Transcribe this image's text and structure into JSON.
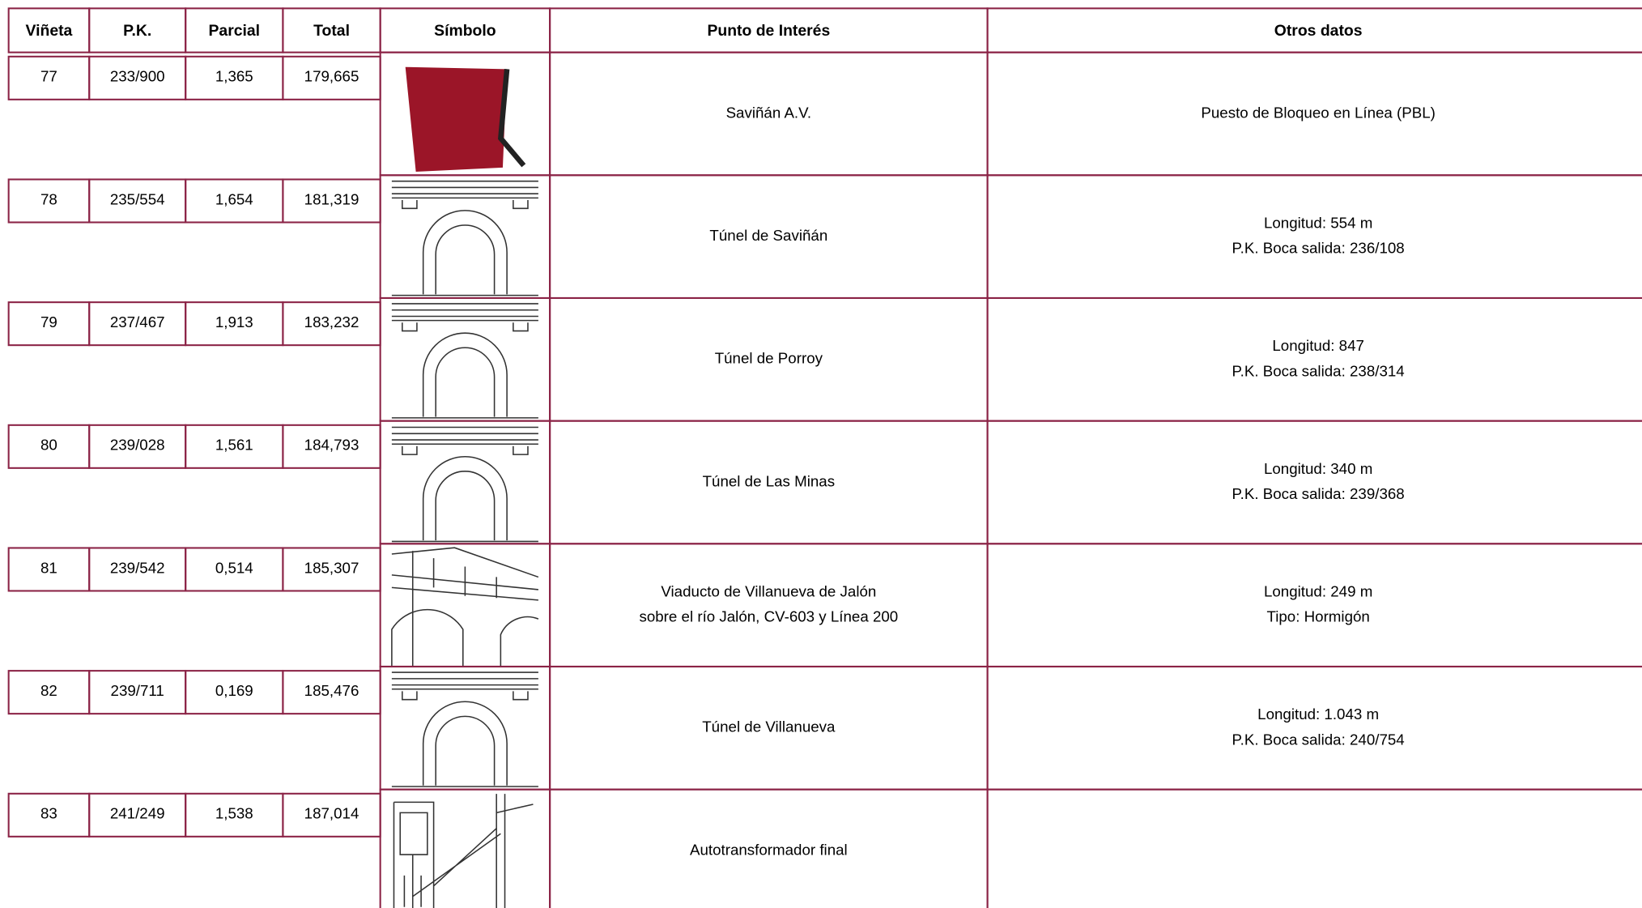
{
  "header": [
    "Viñeta",
    "P.K.",
    "Parcial",
    "Total",
    "Símbolo",
    "Punto de Interés",
    "Otros datos"
  ],
  "rows": [
    {
      "vineta": "77",
      "pk": "233/900",
      "parcial": "1,365",
      "total": "179,665",
      "punto": [
        "Saviñán A.V."
      ],
      "otros": [
        "Puesto de Bloqueo en Línea (PBL)"
      ]
    },
    {
      "vineta": "78",
      "pk": "235/554",
      "parcial": "1,654",
      "total": "181,319",
      "punto": [
        "Túnel de Saviñán"
      ],
      "otros": [
        "Longitud: 554 m",
        "P.K. Boca salida: 236/108"
      ]
    },
    {
      "vineta": "79",
      "pk": "237/467",
      "parcial": "1,913",
      "total": "183,232",
      "punto": [
        "Túnel de Porroy"
      ],
      "otros": [
        "Longitud: 847",
        "P.K. Boca salida: 238/314"
      ]
    },
    {
      "vineta": "80",
      "pk": "239/028",
      "parcial": "1,561",
      "total": "184,793",
      "punto": [
        "Túnel de Las Minas"
      ],
      "otros": [
        "Longitud: 340 m",
        "P.K. Boca salida: 239/368"
      ]
    },
    {
      "vineta": "81",
      "pk": "239/542",
      "parcial": "0,514",
      "total": "185,307",
      "punto": [
        "Viaducto de Villanueva de Jalón",
        "sobre el río Jalón, CV-603 y Línea 200"
      ],
      "otros": [
        "Longitud: 249 m",
        "Tipo: Hormigón"
      ]
    },
    {
      "vineta": "82",
      "pk": "239/711",
      "parcial": "0,169",
      "total": "185,476",
      "punto": [
        "Túnel de Villanueva"
      ],
      "otros": [
        "Longitud: 1.043 m",
        "P.K. Boca salida: 240/754"
      ]
    },
    {
      "vineta": "83",
      "pk": "241/249",
      "parcial": "1,538",
      "total": "187,014",
      "punto": [
        "Autotransformador final"
      ],
      "otros": []
    }
  ]
}
